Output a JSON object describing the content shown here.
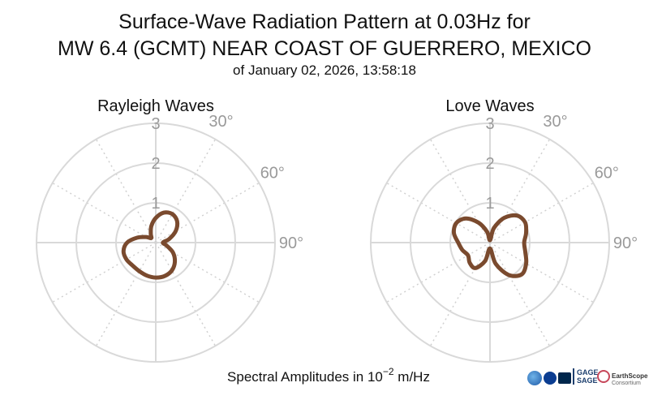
{
  "title_line1": "Surface-Wave Radiation Pattern at 0.03Hz for",
  "title_line2": "MW 6.4 (GCMT) NEAR COAST OF GUERRERO, MEXICO",
  "subtitle": "of January 02, 2026, 13:58:18",
  "footer_label": "Spectral Amplitudes in 10",
  "footer_exponent": "−2",
  "footer_unit": " m/Hz",
  "colors": {
    "pattern": "#7a4a2e",
    "grid": "#d9d9d9",
    "tick_text": "#9a9a9a"
  },
  "logos": {
    "nsf": "NSF",
    "nasa": "NASA",
    "usgs": "USGS",
    "gage": "GAGE",
    "sage": "SAGE",
    "earthscope": "EarthScope",
    "consortium": "Consortium"
  },
  "chart_data": [
    {
      "type": "polar",
      "title": "Rayleigh Waves",
      "rmax": 3,
      "radial_ticks": [
        "1",
        "2",
        "3"
      ],
      "angular_ticks": [
        "30°",
        "60°",
        "90°"
      ],
      "angle_direction": "clockwise",
      "zero_angle": "top",
      "series": [
        {
          "theta_deg": [
            0,
            15,
            30,
            45,
            60,
            75,
            90,
            105,
            120,
            135,
            150,
            165,
            180,
            195,
            210,
            225,
            240,
            255,
            270,
            285,
            300,
            315,
            330,
            345
          ],
          "r": [
            0.62,
            0.78,
            0.83,
            0.76,
            0.58,
            0.35,
            0.18,
            0.28,
            0.5,
            0.68,
            0.81,
            0.87,
            0.88,
            0.86,
            0.83,
            0.82,
            0.85,
            0.84,
            0.72,
            0.48,
            0.28,
            0.16,
            0.25,
            0.43
          ]
        }
      ]
    },
    {
      "type": "polar",
      "title": "Love Waves",
      "rmax": 3,
      "radial_ticks": [
        "1",
        "2",
        "3"
      ],
      "angular_ticks": [
        "30°",
        "60°",
        "90°"
      ],
      "angle_direction": "clockwise",
      "zero_angle": "top",
      "series": [
        {
          "theta_deg": [
            0,
            15,
            30,
            45,
            60,
            75,
            90,
            105,
            120,
            135,
            150,
            165,
            180,
            195,
            210,
            225,
            240,
            255,
            270,
            285,
            300,
            315,
            330,
            345
          ],
          "r": [
            0.06,
            0.38,
            0.72,
            0.96,
            1.02,
            0.94,
            0.86,
            0.92,
            1.05,
            1.13,
            0.94,
            0.55,
            0.15,
            0.48,
            0.74,
            0.72,
            0.64,
            0.72,
            0.8,
            0.94,
            0.98,
            0.86,
            0.58,
            0.28
          ]
        }
      ]
    }
  ]
}
